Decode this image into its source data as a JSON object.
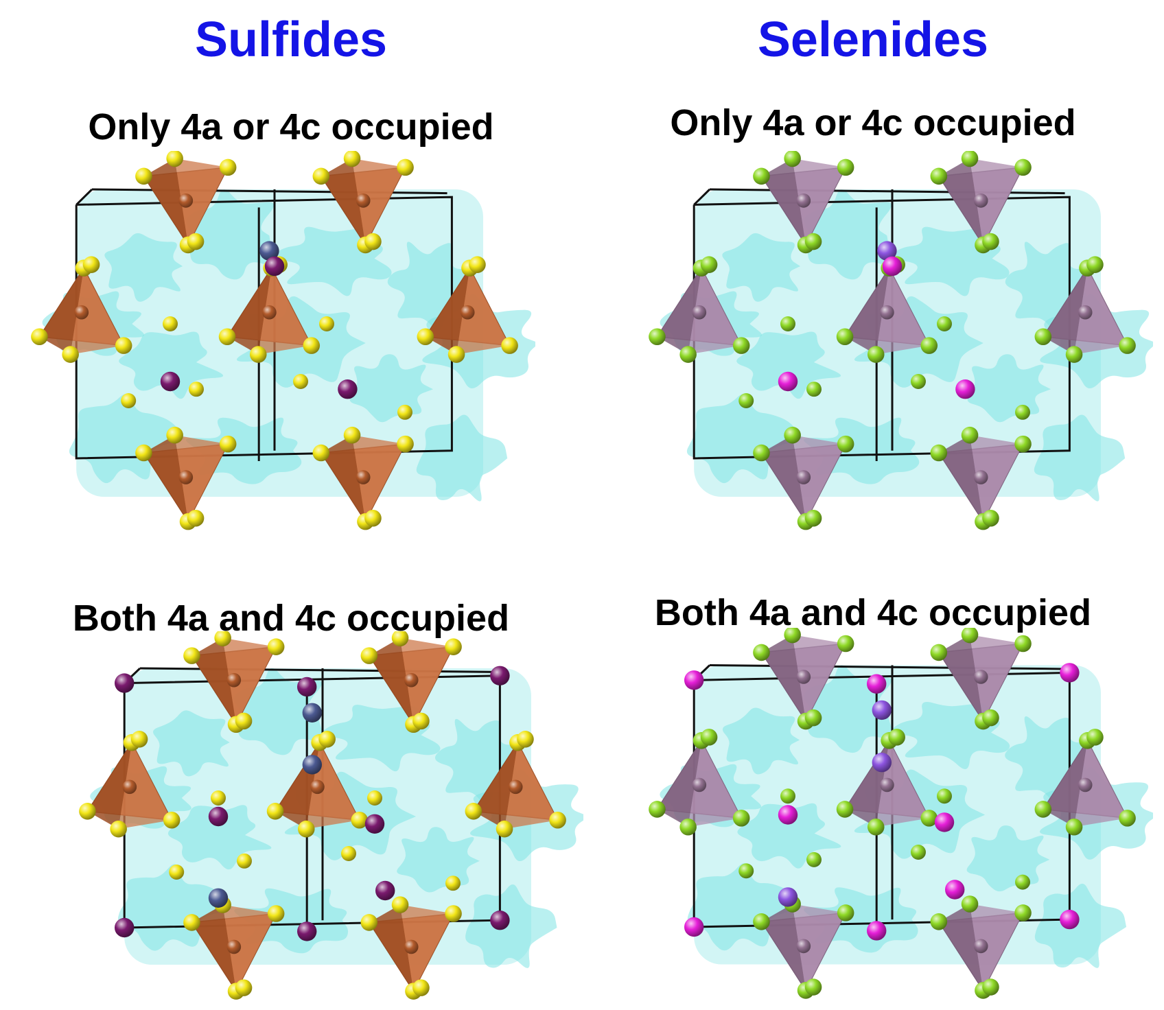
{
  "columns": {
    "sulfides": {
      "title": "Sulfides"
    },
    "selenides": {
      "title": "Selenides"
    }
  },
  "panels": {
    "sulfides_top": {
      "title": "Only 4a or 4c occupied",
      "scheme": "sulfide",
      "mode": "partial"
    },
    "selenides_top": {
      "title": "Only 4a or 4c occupied",
      "scheme": "selenide",
      "mode": "partial"
    },
    "sulfides_bottom": {
      "title": "Both 4a and 4c occupied",
      "scheme": "sulfide",
      "mode": "full"
    },
    "selenides_bottom": {
      "title": "Both 4a and 4c occupied",
      "scheme": "selenide",
      "mode": "full"
    }
  },
  "colors": {
    "title_blue": "#1414e6",
    "isosurface": "#7fe3e3",
    "cell_edge": "#111111",
    "sulfide_tetrahedron": "#c4622c",
    "sulfide_anion": "#f2e617",
    "sulfide_cation_a": "#7a1a6e",
    "sulfide_cation_b": "#4c5a92",
    "selenide_tetrahedron": "#a07a9e",
    "selenide_anion": "#8fd926",
    "selenide_cation_a": "#e61fd8",
    "selenide_cation_b": "#8d55e0"
  }
}
